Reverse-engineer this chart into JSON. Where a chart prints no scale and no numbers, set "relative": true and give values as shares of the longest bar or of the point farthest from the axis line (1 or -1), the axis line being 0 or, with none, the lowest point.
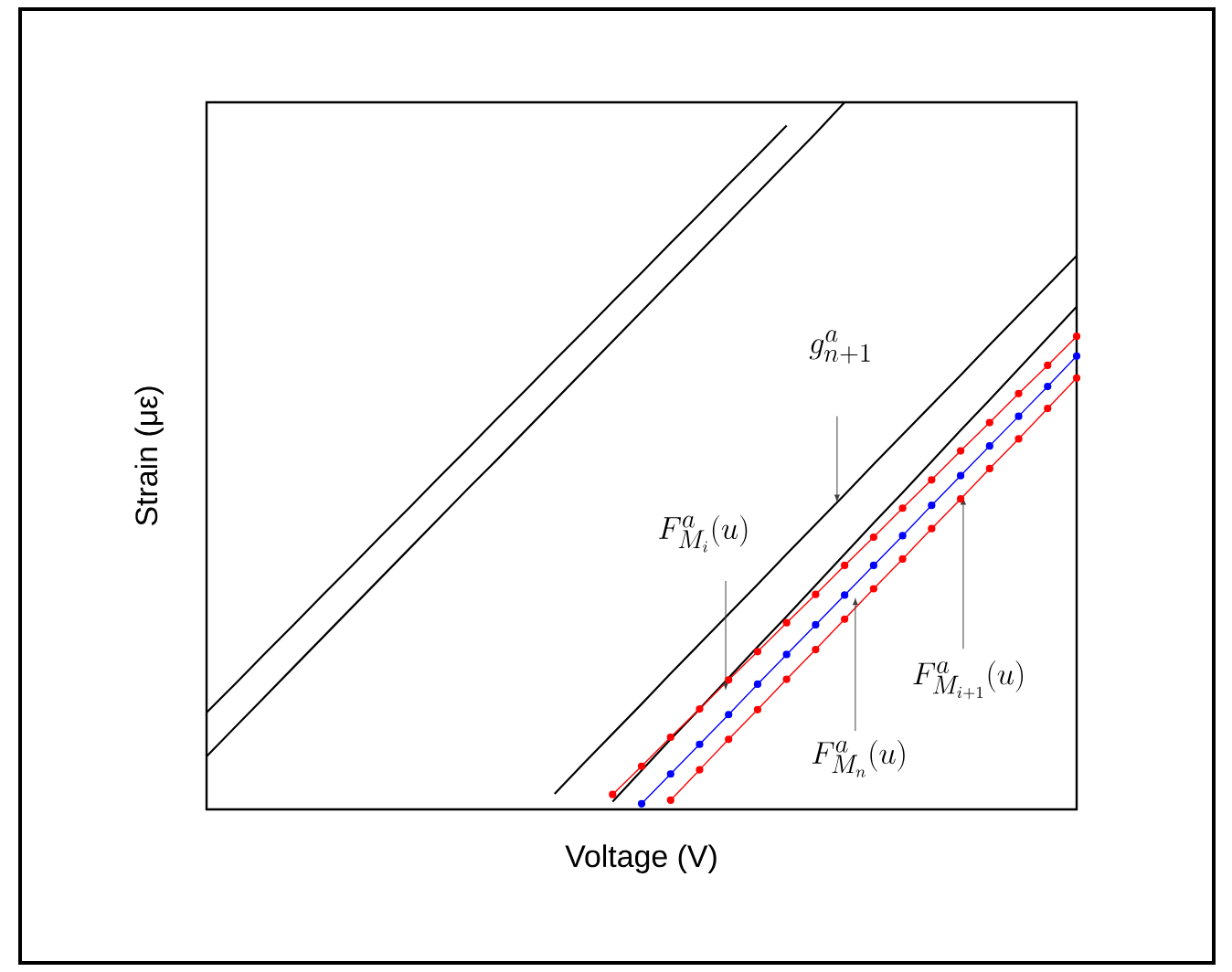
{
  "chart_data": {
    "type": "line",
    "relative": true,
    "xlabel": "Voltage (V)",
    "ylabel": "Strain (με)",
    "categories": [
      null,
      null,
      null,
      null,
      null,
      null,
      null,
      null,
      null,
      null,
      null,
      null,
      null,
      null,
      null,
      null,
      null,
      null,
      null,
      null,
      null,
      null,
      null,
      null,
      null,
      null,
      null,
      null,
      null,
      null,
      null
    ],
    "series": [
      {
        "color": "#000000",
        "marker": "none",
        "values": [
          0.137,
          0.178,
          0.22,
          0.261,
          0.303,
          0.344,
          0.386,
          0.427,
          0.469,
          0.51,
          0.552,
          0.593,
          0.635,
          0.676,
          0.718,
          0.759,
          0.801,
          0.842,
          0.884,
          0.925,
          0.967,
          null,
          null,
          null,
          null,
          null,
          null,
          null,
          null,
          null,
          null
        ]
      },
      {
        "color": "#000000",
        "marker": "none",
        "values": [
          0.075,
          0.117,
          0.159,
          0.201,
          0.243,
          0.285,
          0.327,
          0.369,
          0.411,
          0.453,
          0.494,
          0.536,
          0.578,
          0.62,
          0.662,
          0.704,
          0.746,
          0.788,
          0.83,
          0.872,
          0.914,
          0.956,
          1.0,
          null,
          null,
          null,
          null,
          null,
          null,
          null,
          null
        ]
      },
      {
        "color": "#000000",
        "marker": "none",
        "values": [
          null,
          null,
          null,
          null,
          null,
          null,
          null,
          null,
          null,
          null,
          null,
          null,
          0.022,
          0.065,
          0.107,
          0.149,
          0.192,
          0.234,
          0.276,
          0.318,
          0.361,
          0.403,
          0.445,
          0.488,
          0.53,
          0.572,
          0.614,
          0.657,
          0.699,
          0.741,
          0.783
        ]
      },
      {
        "color": "#000000",
        "marker": "none",
        "values": [
          null,
          null,
          null,
          null,
          null,
          null,
          null,
          null,
          null,
          null,
          null,
          null,
          null,
          null,
          0.011,
          0.055,
          0.099,
          0.142,
          0.186,
          0.23,
          0.273,
          0.317,
          0.361,
          0.405,
          0.448,
          0.492,
          0.536,
          0.579,
          0.623,
          0.667,
          0.711
        ]
      },
      {
        "color": "#ff0000",
        "marker": "circle",
        "values": [
          null,
          null,
          null,
          null,
          null,
          null,
          null,
          null,
          null,
          null,
          null,
          null,
          null,
          null,
          0.021,
          0.061,
          0.102,
          0.142,
          0.183,
          0.223,
          0.264,
          0.304,
          0.345,
          0.385,
          0.426,
          0.466,
          0.507,
          0.547,
          0.588,
          0.628,
          0.669
        ]
      },
      {
        "color": "#0000ff",
        "marker": "circle",
        "values": [
          null,
          null,
          null,
          null,
          null,
          null,
          null,
          null,
          null,
          null,
          null,
          null,
          null,
          null,
          null,
          0.008,
          0.05,
          0.092,
          0.134,
          0.177,
          0.219,
          0.261,
          0.303,
          0.345,
          0.387,
          0.43,
          0.472,
          0.514,
          0.556,
          0.598,
          0.641
        ]
      },
      {
        "color": "#ff0000",
        "marker": "circle",
        "values": [
          null,
          null,
          null,
          null,
          null,
          null,
          null,
          null,
          null,
          null,
          null,
          null,
          null,
          null,
          null,
          null,
          0.013,
          0.056,
          0.099,
          0.141,
          0.184,
          0.226,
          0.269,
          0.312,
          0.354,
          0.397,
          0.439,
          0.482,
          0.524,
          0.567,
          0.61
        ]
      }
    ],
    "annotations": [
      "g_{n+1}^{a}",
      "F_{M_{i}}^{a}(u)",
      "F_{M_{n}}^{a}(u)",
      "F_{M_{i+1}}^{a}(u)"
    ]
  }
}
